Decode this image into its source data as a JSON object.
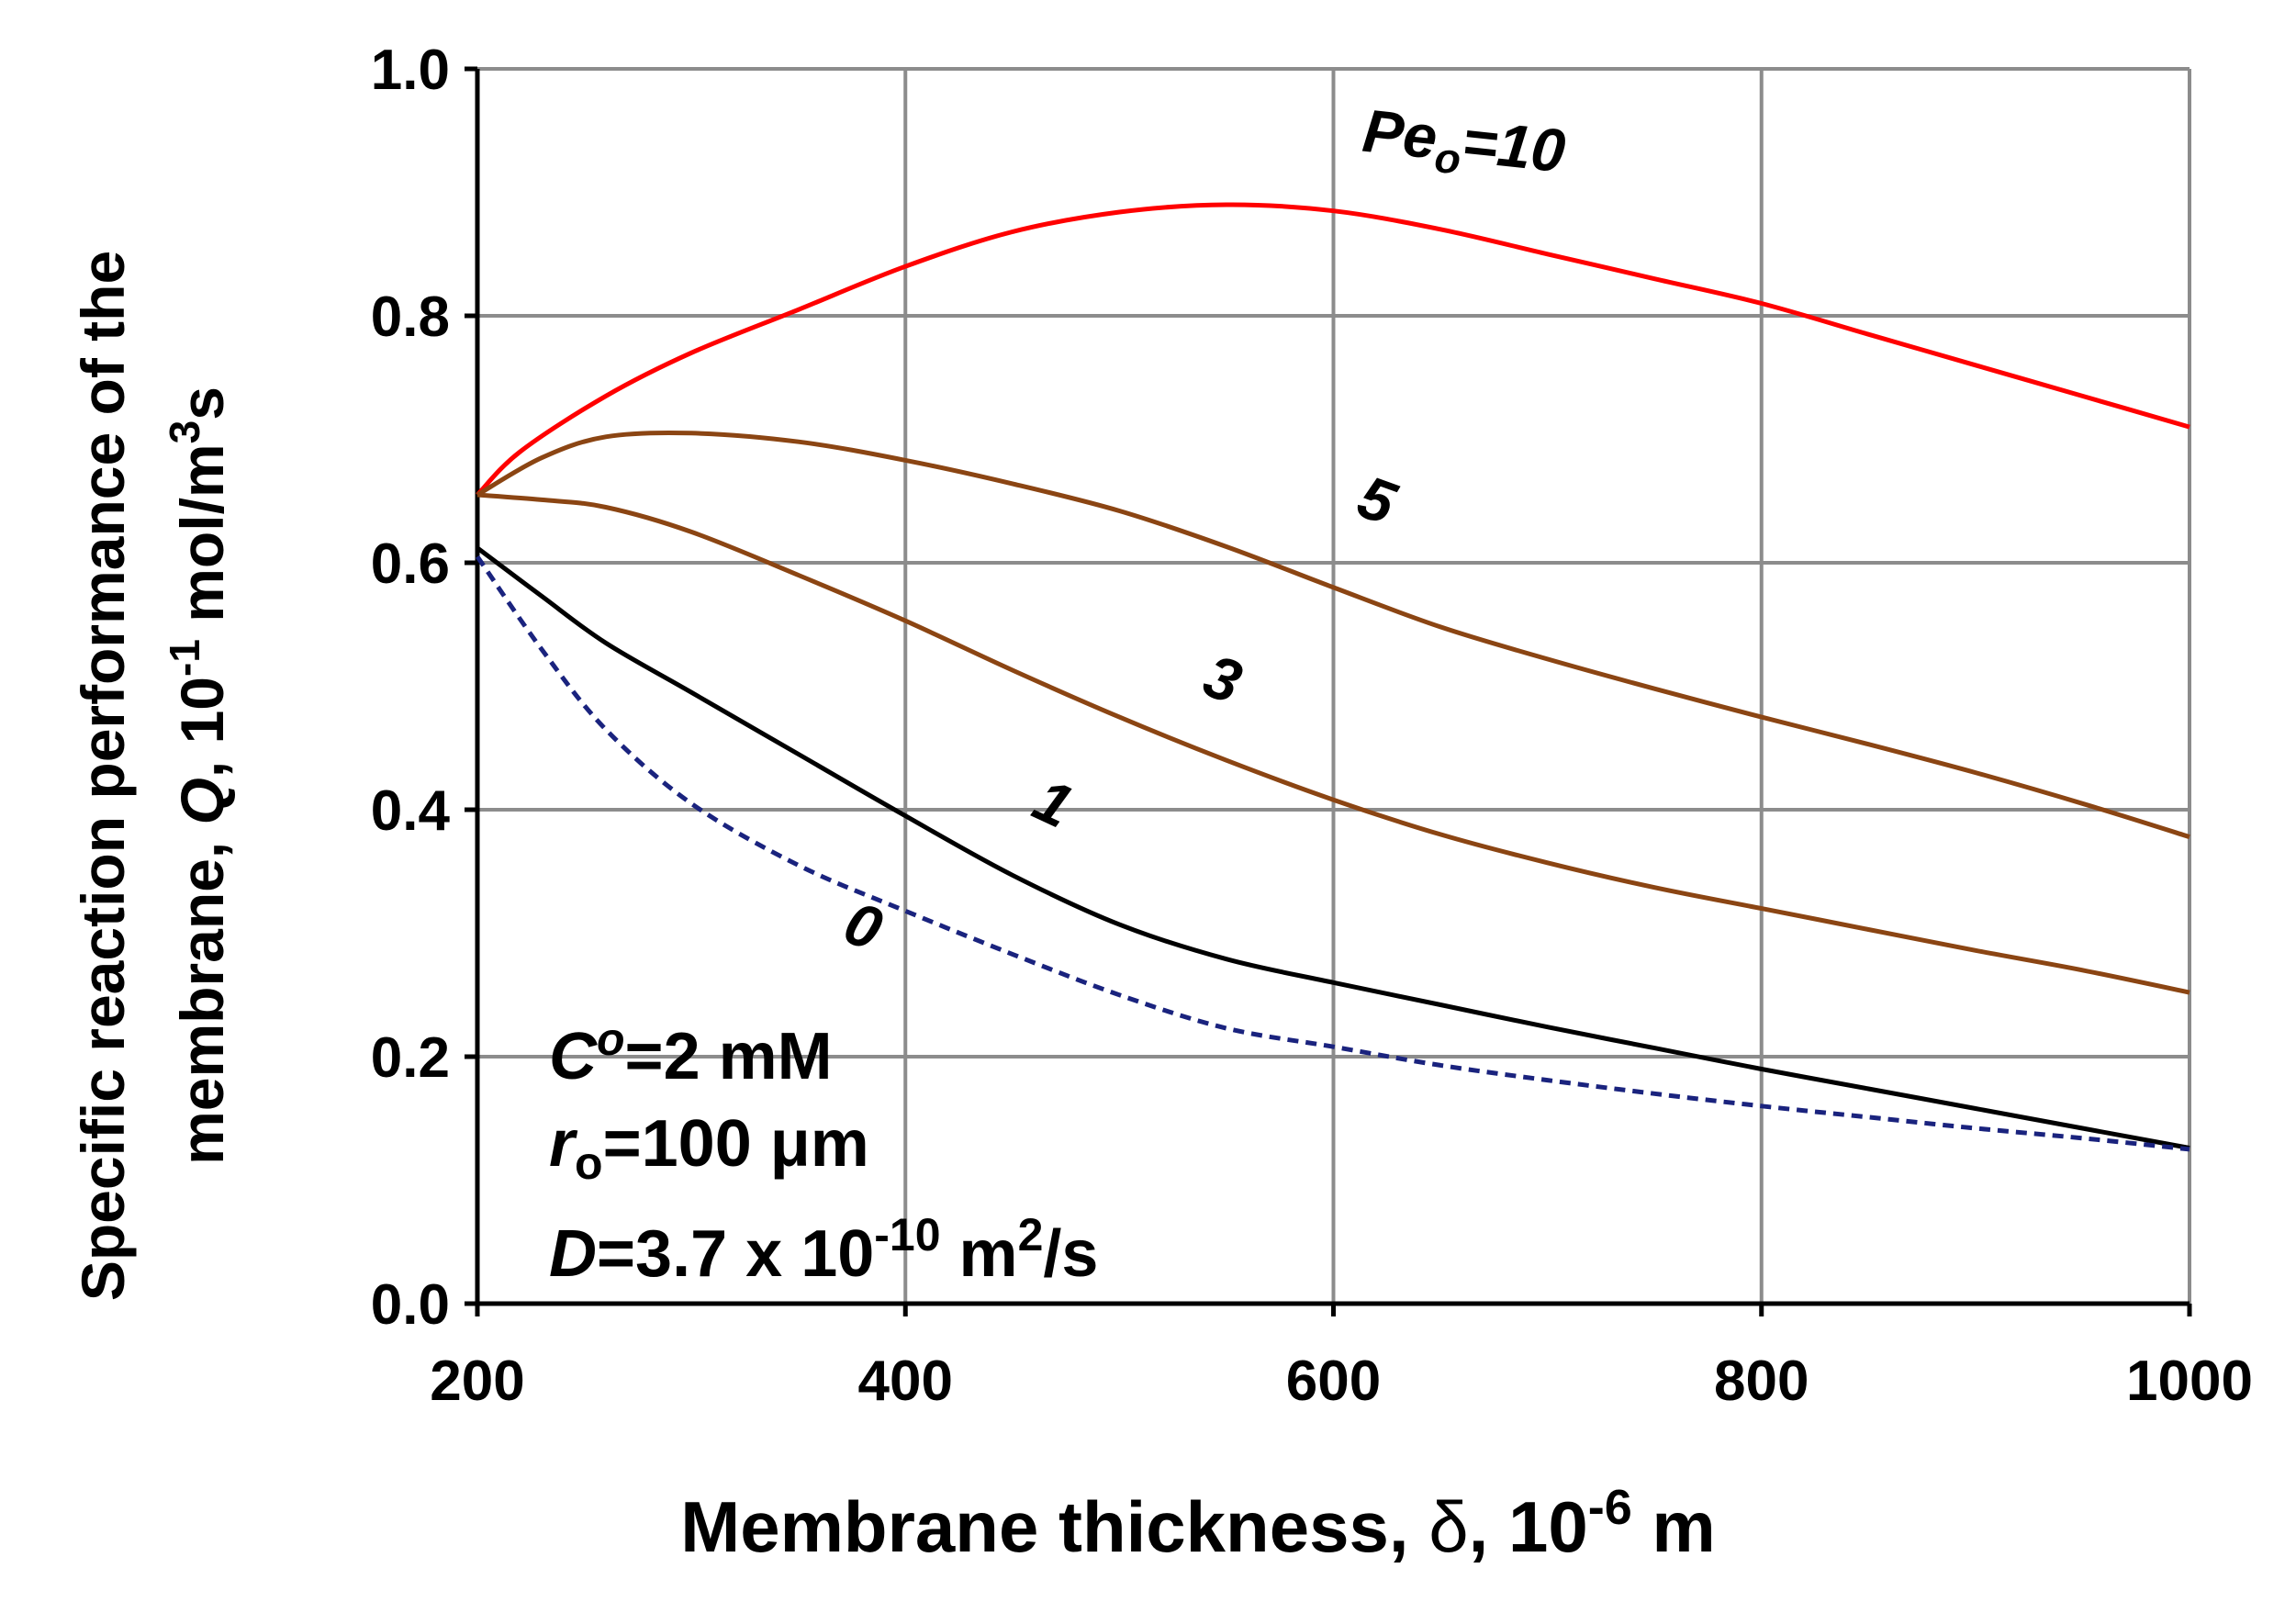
{
  "chart_data": {
    "type": "line",
    "title": "",
    "xlabel": {
      "main": "Membrane thickness, ",
      "symbol": "δ",
      "after": ", 10",
      "exp": "-6",
      "unit": " m"
    },
    "ylabel": {
      "line1": "Specific reaction performance of the",
      "line2_pre": "membrane, ",
      "line2_q": "Q",
      "line2_mid": ", 10",
      "line2_exp": "-1",
      "line2_unit": " mol/m",
      "line2_unitexp": "3",
      "line2_end": "s"
    },
    "xlim": [
      200,
      1000
    ],
    "ylim": [
      0.0,
      1.0
    ],
    "xticks": [
      "200",
      "400",
      "600",
      "800",
      "1000"
    ],
    "yticks": [
      "0.0",
      "0.2",
      "0.4",
      "0.6",
      "0.8",
      "1.0"
    ],
    "grid": true,
    "series": [
      {
        "name": "Pe=10",
        "color": "#ff0000",
        "dash": false,
        "x": [
          200,
          220,
          260,
          300,
          350,
          400,
          450,
          500,
          550,
          600,
          650,
          700,
          750,
          800,
          850,
          900,
          950,
          1000
        ],
        "y": [
          0.655,
          0.69,
          0.735,
          0.77,
          0.805,
          0.84,
          0.868,
          0.884,
          0.89,
          0.885,
          0.87,
          0.85,
          0.83,
          0.81,
          0.785,
          0.76,
          0.735,
          0.71
        ]
      },
      {
        "name": "5",
        "color": "#8b4513",
        "dash": false,
        "x": [
          200,
          230,
          260,
          300,
          350,
          400,
          450,
          500,
          550,
          600,
          650,
          700,
          750,
          800,
          850,
          900,
          950,
          1000
        ],
        "y": [
          0.655,
          0.685,
          0.702,
          0.705,
          0.698,
          0.683,
          0.664,
          0.642,
          0.613,
          0.58,
          0.548,
          0.522,
          0.498,
          0.475,
          0.453,
          0.43,
          0.405,
          0.378
        ]
      },
      {
        "name": "3",
        "color": "#8b4513",
        "dash": false,
        "x": [
          200,
          230,
          260,
          300,
          350,
          400,
          450,
          500,
          550,
          600,
          650,
          700,
          750,
          800,
          850,
          900,
          950,
          1000
        ],
        "y": [
          0.655,
          0.651,
          0.645,
          0.625,
          0.59,
          0.553,
          0.513,
          0.475,
          0.44,
          0.408,
          0.38,
          0.357,
          0.337,
          0.32,
          0.303,
          0.286,
          0.27,
          0.252
        ]
      },
      {
        "name": "1",
        "color": "#000000",
        "dash": false,
        "x": [
          200,
          230,
          260,
          300,
          350,
          400,
          450,
          500,
          550,
          600,
          650,
          700,
          750,
          800,
          850,
          900,
          950,
          1000
        ],
        "y": [
          0.612,
          0.573,
          0.535,
          0.495,
          0.445,
          0.395,
          0.347,
          0.307,
          0.279,
          0.26,
          0.242,
          0.224,
          0.207,
          0.19,
          0.174,
          0.158,
          0.142,
          0.126
        ]
      },
      {
        "name": "0",
        "color": "#1a237e",
        "dash": true,
        "x": [
          200,
          230,
          260,
          300,
          350,
          400,
          450,
          500,
          550,
          600,
          650,
          700,
          750,
          800,
          850,
          900,
          950,
          1000
        ],
        "y": [
          0.605,
          0.53,
          0.465,
          0.405,
          0.355,
          0.318,
          0.283,
          0.25,
          0.223,
          0.208,
          0.193,
          0.181,
          0.17,
          0.16,
          0.151,
          0.142,
          0.134,
          0.125
        ]
      }
    ],
    "curve_labels": [
      {
        "text": "Pe",
        "sub": "o",
        "suffix": "=10",
        "x": 660,
        "y": 0.925,
        "rotate": 6
      },
      {
        "text": "5",
        "sub": "",
        "suffix": "",
        "x": 617,
        "y": 0.635,
        "rotate": 20
      },
      {
        "text": "3",
        "sub": "",
        "suffix": "",
        "x": 545,
        "y": 0.49,
        "rotate": 20
      },
      {
        "text": "1",
        "sub": "",
        "suffix": "",
        "x": 465,
        "y": 0.39,
        "rotate": 25
      },
      {
        "text": "0",
        "sub": "",
        "suffix": "",
        "x": 377,
        "y": 0.29,
        "rotate": 20
      }
    ],
    "annotations": {
      "line1_var": "C",
      "line1_sup": "o",
      "line1_rest": "=2 mM",
      "line2_var": "r",
      "line2_sub": "o",
      "line2_rest": "=100 μm",
      "line3_var": "D",
      "line3_mid": "=3.7 x 10",
      "line3_exp": "-10",
      "line3_unit": " m",
      "line3_unitexp": "2",
      "line3_end": "/s"
    }
  }
}
